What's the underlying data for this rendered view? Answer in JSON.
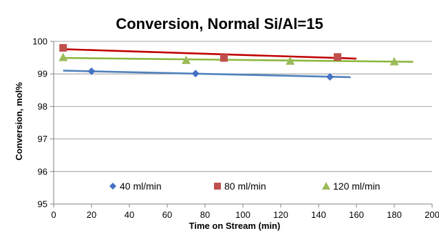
{
  "chart_data": {
    "type": "scatter",
    "title": "Conversion, Normal Si/Al=15",
    "xlabel": "Time on Stream (min)",
    "ylabel": "Conversion, mol%",
    "xlim": [
      0,
      200
    ],
    "ylim": [
      95,
      100
    ],
    "xticks": [
      "0",
      "20",
      "40",
      "60",
      "80",
      "100",
      "120",
      "140",
      "160",
      "180",
      "200"
    ],
    "yticks": [
      "95",
      "96",
      "97",
      "98",
      "99",
      "100"
    ],
    "grid": "horizontal",
    "legend_position": "bottom-inside",
    "series": [
      {
        "name": "40 ml/min",
        "color": "#4472C4",
        "marker": "diamond",
        "points": [
          [
            20,
            99.08
          ],
          [
            75,
            99.01
          ],
          [
            146,
            98.91
          ]
        ],
        "trendline": [
          [
            5,
            99.1
          ],
          [
            157,
            98.9
          ]
        ]
      },
      {
        "name": "80 ml/min",
        "color": "#C0504D",
        "marker": "square",
        "points": [
          [
            5,
            99.8
          ],
          [
            90,
            99.49
          ],
          [
            150,
            99.52
          ]
        ],
        "trendline": [
          [
            5,
            99.76
          ],
          [
            160,
            99.47
          ]
        ]
      },
      {
        "name": "120 ml/min",
        "color": "#9BBB59",
        "marker": "triangle",
        "points": [
          [
            5,
            99.51
          ],
          [
            70,
            99.42
          ],
          [
            125,
            99.4
          ],
          [
            180,
            99.38
          ]
        ],
        "trendline": [
          [
            5,
            99.49
          ],
          [
            190,
            99.37
          ]
        ]
      }
    ],
    "trendline_colors": {
      "40 ml/min": "#4F81BD",
      "80 ml/min": "#C00000",
      "120 ml/min": "#8DB63D"
    }
  }
}
